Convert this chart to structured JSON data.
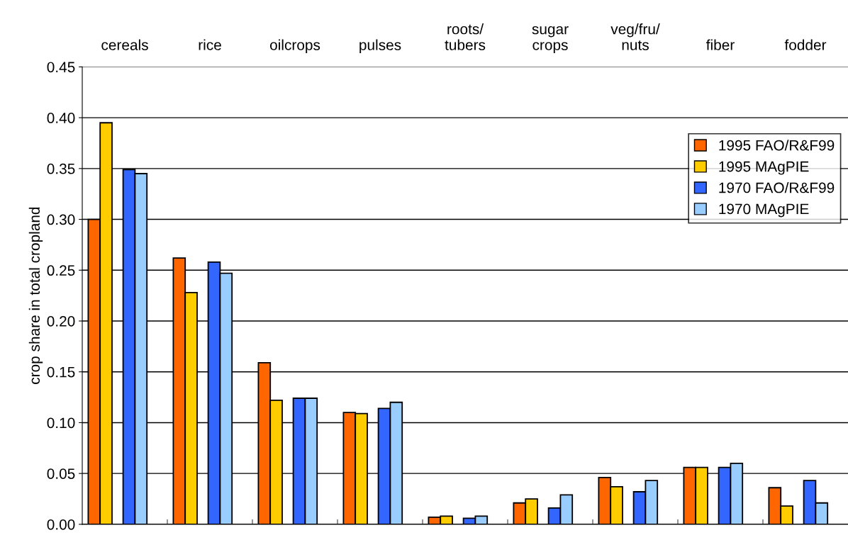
{
  "chart_data": {
    "type": "bar",
    "ylabel": "crop share in total cropland",
    "categories": [
      "cereals",
      "rice",
      "oilcrops",
      "pulses",
      "roots/\ntubers",
      "sugar\ncrops",
      "veg/fru/\nnuts",
      "fiber",
      "fodder"
    ],
    "series": [
      {
        "name": "1995 FAO/R&F99",
        "color": "#ff6600",
        "values": [
          0.3,
          0.262,
          0.159,
          0.11,
          0.007,
          0.021,
          0.046,
          0.056,
          0.036
        ]
      },
      {
        "name": "1995 MAgPIE",
        "color": "#ffcc00",
        "values": [
          0.395,
          0.228,
          0.122,
          0.109,
          0.008,
          0.025,
          0.037,
          0.056,
          0.018
        ]
      },
      {
        "name": "1970 FAO/R&F99",
        "color": "#3366ff",
        "values": [
          0.349,
          0.258,
          0.124,
          0.114,
          0.006,
          0.016,
          0.032,
          0.056,
          0.043
        ]
      },
      {
        "name": "1970 MAgPIE",
        "color": "#99ccff",
        "values": [
          0.345,
          0.247,
          0.124,
          0.12,
          0.008,
          0.029,
          0.043,
          0.06,
          0.021
        ]
      }
    ],
    "ylim": [
      0,
      0.45
    ],
    "yticks": [
      {
        "value": 0,
        "label": "0.00"
      },
      {
        "value": 0.05,
        "label": "0.05"
      },
      {
        "value": 0.1,
        "label": "0.10"
      },
      {
        "value": 0.15,
        "label": "0.15"
      },
      {
        "value": 0.2,
        "label": "0.20"
      },
      {
        "value": 0.25,
        "label": "0.25"
      },
      {
        "value": 0.3,
        "label": "0.30"
      },
      {
        "value": 0.35,
        "label": "0.35"
      },
      {
        "value": 0.4,
        "label": "0.40"
      },
      {
        "value": 0.45,
        "label": "0.45"
      }
    ],
    "grid": "y",
    "legend": "top right"
  }
}
